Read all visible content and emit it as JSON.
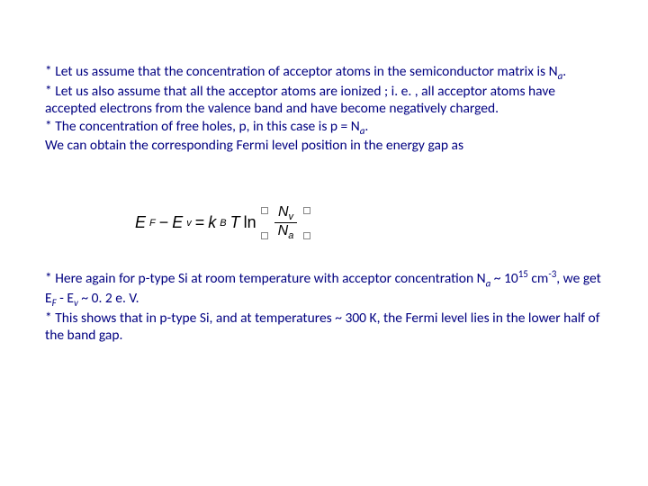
{
  "colors": {
    "text": "#000080",
    "equation": "#000000",
    "background": "#ffffff"
  },
  "typography": {
    "body_fontsize": 15.5,
    "equation_fontsize": 18,
    "sub_fontsize": 11
  },
  "para1": {
    "l1": "* Let us assume that the concentration of acceptor atoms in the semiconductor matrix is N",
    "l1sub": "a",
    "l1end": ".",
    "l2": "* Let us also assume that all the acceptor atoms are ionized ; i. e. , all acceptor atoms have accepted electrons from the valence band and have become negatively charged.",
    "l3a": "* The concentration of free holes, p, in this case is p = N",
    "l3sub": "a",
    "l3end": ".",
    "l4": "We can obtain the corresponding Fermi level position in the energy gap as"
  },
  "equation": {
    "E": "E",
    "F": "F",
    "minus": " − ",
    "v": "v",
    "eq": " = ",
    "k": "k",
    "B": "B",
    "T": "T",
    "ln": "ln",
    "Nv": "N",
    "Nv_sub": "v",
    "Na": "N",
    "Na_sub": "a"
  },
  "para2": {
    "l1a": "* Here again for p-type Si at room temperature with acceptor concentration N",
    "l1sub": "a",
    "l2a": " ~ 10",
    "l2sup": "15",
    "l2b": " cm",
    "l2sup2": "-3",
    "l2c": ", we get E",
    "l2subF": "F",
    "l2d": " - E",
    "l2subv": "v",
    "l2e": " ~ 0. 2 e. V.",
    "l3": "* This shows that in p-type Si, and at temperatures ~ 300 K, the Fermi level lies in the lower half of the band gap."
  }
}
